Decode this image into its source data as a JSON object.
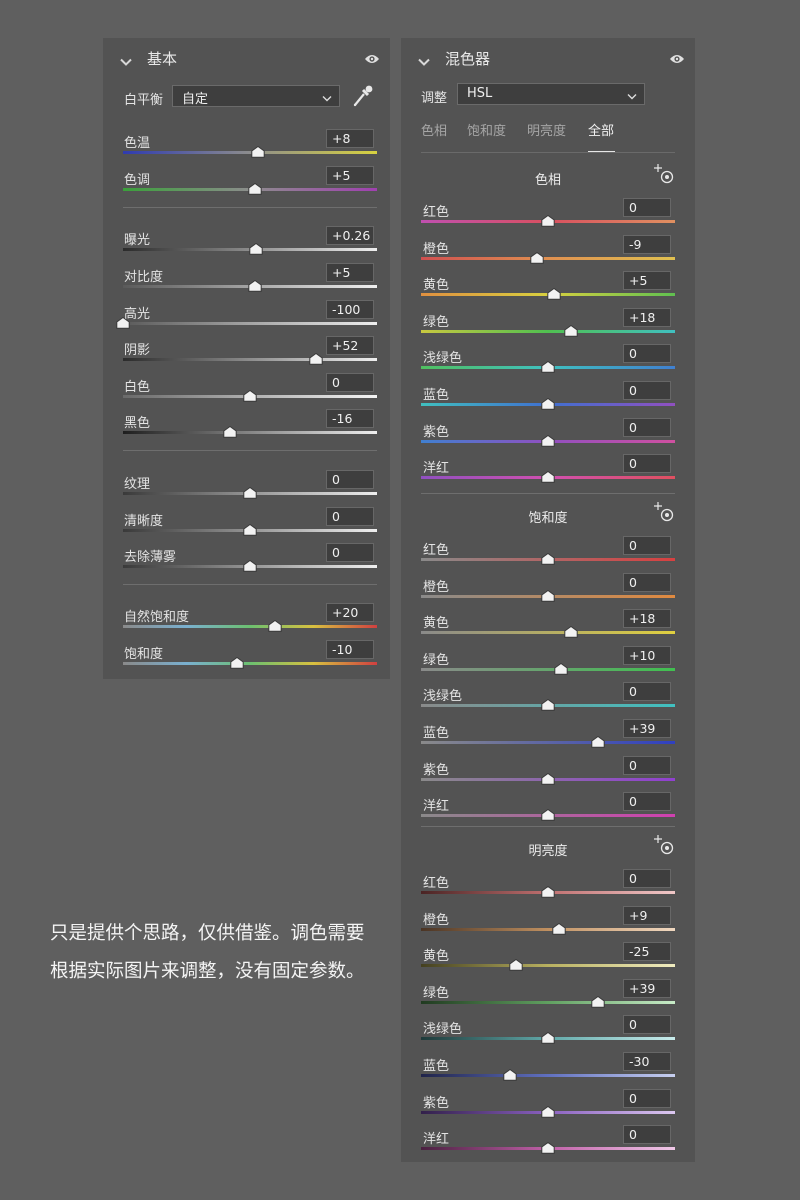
{
  "basic": {
    "title": "基本",
    "wb_label": "白平衡",
    "wb_value": "自定",
    "sliders": [
      {
        "id": "temp",
        "label": "色温",
        "value": "+8",
        "pos": 0.53,
        "grad": "linear-gradient(90deg,#2f3bb0,#8d8d8d,#d8d240)"
      },
      {
        "id": "tint",
        "label": "色调",
        "value": "+5",
        "pos": 0.52,
        "grad": "linear-gradient(90deg,#3aa03a,#8d8d8d,#a040b0)"
      },
      {
        "id": "exposure",
        "label": "曝光",
        "value": "+0.26",
        "pos": 0.525,
        "grad": "linear-gradient(90deg,#2b2b2b,#efefef)"
      },
      {
        "id": "contrast",
        "label": "对比度",
        "value": "+5",
        "pos": 0.52,
        "grad": "linear-gradient(90deg,#5a5a5a,#efefef)"
      },
      {
        "id": "highlights",
        "label": "高光",
        "value": "-100",
        "pos": 0.0,
        "grad": "linear-gradient(90deg,#5a5a5a,#efefef)"
      },
      {
        "id": "shadows",
        "label": "阴影",
        "value": "+52",
        "pos": 0.76,
        "grad": "linear-gradient(90deg,#2b2b2b,#efefef)"
      },
      {
        "id": "whites",
        "label": "白色",
        "value": "0",
        "pos": 0.5,
        "grad": "linear-gradient(90deg,#6a6a6a,#f4f4f4)"
      },
      {
        "id": "blacks",
        "label": "黑色",
        "value": "-16",
        "pos": 0.42,
        "grad": "linear-gradient(90deg,#1e1e1e,#efefef)"
      },
      {
        "id": "texture",
        "label": "纹理",
        "value": "0",
        "pos": 0.5,
        "grad": "linear-gradient(90deg,#3a3a3a,#efefef)"
      },
      {
        "id": "clarity",
        "label": "清晰度",
        "value": "0",
        "pos": 0.5,
        "grad": "linear-gradient(90deg,#3a3a3a,#efefef)"
      },
      {
        "id": "dehaze",
        "label": "去除薄雾",
        "value": "0",
        "pos": 0.5,
        "grad": "linear-gradient(90deg,#3a3a3a,#efefef)"
      },
      {
        "id": "vibrance",
        "label": "自然饱和度",
        "value": "+20",
        "pos": 0.6,
        "grad": "linear-gradient(90deg,#8a8a8a,#7ab0d0,#6cc070,#d8c040,#d04040)"
      },
      {
        "id": "saturation",
        "label": "饱和度",
        "value": "-10",
        "pos": 0.45,
        "grad": "linear-gradient(90deg,#8a8a8a,#7ab0d0,#6cc070,#d8c040,#d04040)"
      }
    ]
  },
  "mixer": {
    "title": "混色器",
    "adjust_label": "调整",
    "adjust_value": "HSL",
    "tabs": [
      {
        "label": "色相",
        "active": false
      },
      {
        "label": "饱和度",
        "active": false
      },
      {
        "label": "明亮度",
        "active": false
      },
      {
        "label": "全部",
        "active": true
      }
    ],
    "sections": [
      {
        "title": "色相",
        "sliders": [
          {
            "label": "红色",
            "value": "0",
            "pos": 0.5,
            "grad": "linear-gradient(90deg,#c050b0,#d85060,#e09060)"
          },
          {
            "label": "橙色",
            "value": "-9",
            "pos": 0.455,
            "grad": "linear-gradient(90deg,#d05050,#e09050,#e0c050)"
          },
          {
            "label": "黄色",
            "value": "+5",
            "pos": 0.525,
            "grad": "linear-gradient(90deg,#e09040,#d8d040,#60c050)"
          },
          {
            "label": "绿色",
            "value": "+18",
            "pos": 0.59,
            "grad": "linear-gradient(90deg,#c8c840,#50c050,#40c0c0)"
          },
          {
            "label": "浅绿色",
            "value": "0",
            "pos": 0.5,
            "grad": "linear-gradient(90deg,#50c060,#40c0c0,#4080d0)"
          },
          {
            "label": "蓝色",
            "value": "0",
            "pos": 0.5,
            "grad": "linear-gradient(90deg,#40c0c0,#4070d0,#9050c0)"
          },
          {
            "label": "紫色",
            "value": "0",
            "pos": 0.5,
            "grad": "linear-gradient(90deg,#4080d0,#9050c0,#d050a0)"
          },
          {
            "label": "洋红",
            "value": "0",
            "pos": 0.5,
            "grad": "linear-gradient(90deg,#9050c0,#d050b0,#e05060)"
          }
        ]
      },
      {
        "title": "饱和度",
        "sliders": [
          {
            "label": "红色",
            "value": "0",
            "pos": 0.5,
            "grad": "linear-gradient(90deg,#8a8a8a,#d84040)"
          },
          {
            "label": "橙色",
            "value": "0",
            "pos": 0.5,
            "grad": "linear-gradient(90deg,#8a8a8a,#e08a40)"
          },
          {
            "label": "黄色",
            "value": "+18",
            "pos": 0.59,
            "grad": "linear-gradient(90deg,#8a8a8a,#e0d040)"
          },
          {
            "label": "绿色",
            "value": "+10",
            "pos": 0.55,
            "grad": "linear-gradient(90deg,#8a8a8a,#40c050)"
          },
          {
            "label": "浅绿色",
            "value": "0",
            "pos": 0.5,
            "grad": "linear-gradient(90deg,#8a8a8a,#40c0c0)"
          },
          {
            "label": "蓝色",
            "value": "+39",
            "pos": 0.695,
            "grad": "linear-gradient(90deg,#8a8a8a,#2f40c0)"
          },
          {
            "label": "紫色",
            "value": "0",
            "pos": 0.5,
            "grad": "linear-gradient(90deg,#8a8a8a,#9040d0)"
          },
          {
            "label": "洋红",
            "value": "0",
            "pos": 0.5,
            "grad": "linear-gradient(90deg,#8a8a8a,#d040b0)"
          }
        ]
      },
      {
        "title": "明亮度",
        "sliders": [
          {
            "label": "红色",
            "value": "0",
            "pos": 0.5,
            "grad": "linear-gradient(90deg,#4a2424,#c07070,#f0c8c8)"
          },
          {
            "label": "橙色",
            "value": "+9",
            "pos": 0.545,
            "grad": "linear-gradient(90deg,#4a3424,#c09060,#f0d8c0)"
          },
          {
            "label": "黄色",
            "value": "-25",
            "pos": 0.375,
            "grad": "linear-gradient(90deg,#444020,#b8b060,#f0ecc0)"
          },
          {
            "label": "绿色",
            "value": "+39",
            "pos": 0.695,
            "grad": "linear-gradient(90deg,#203a20,#60a060,#c8ecc8)"
          },
          {
            "label": "浅绿色",
            "value": "0",
            "pos": 0.5,
            "grad": "linear-gradient(90deg,#1e3a3a,#60a8a8,#c8ecec)"
          },
          {
            "label": "蓝色",
            "value": "-30",
            "pos": 0.35,
            "grad": "linear-gradient(90deg,#20244a,#6070c0,#c8d0f0)"
          },
          {
            "label": "紫色",
            "value": "0",
            "pos": 0.5,
            "grad": "linear-gradient(90deg,#32204a,#8a60c0,#dcc8f0)"
          },
          {
            "label": "洋红",
            "value": "0",
            "pos": 0.5,
            "grad": "linear-gradient(90deg,#4a2040,#c060a8,#f0c8e8)"
          }
        ]
      }
    ]
  },
  "note": "只是提供个思路，仅供借鉴。调色需要根据实际图片来调整，没有固定参数。"
}
